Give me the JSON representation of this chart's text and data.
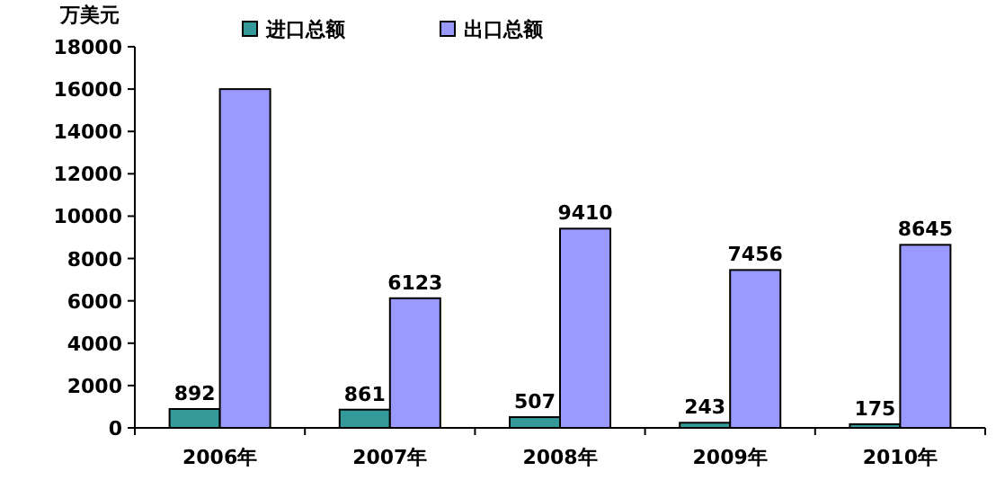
{
  "chart_data": {
    "type": "bar",
    "ylabel": "万美元",
    "categories": [
      "2006年",
      "2007年",
      "2008年",
      "2009年",
      "2010年"
    ],
    "series": [
      {
        "name": "进口总额",
        "color": "#339999",
        "values": [
          892,
          861,
          507,
          243,
          175
        ],
        "value_labels": [
          "892",
          "861",
          "507",
          "243",
          "175"
        ]
      },
      {
        "name": "出口总额",
        "color": "#9999ff",
        "values": [
          16000,
          6123,
          9410,
          7456,
          8645
        ],
        "value_labels": [
          null,
          "6123",
          "9410",
          "7456",
          "8645"
        ]
      }
    ],
    "ylim": [
      0,
      18000
    ],
    "yticks": [
      0,
      2000,
      4000,
      6000,
      8000,
      10000,
      12000,
      14000,
      16000,
      18000
    ],
    "legend": "top",
    "grid": false
  }
}
